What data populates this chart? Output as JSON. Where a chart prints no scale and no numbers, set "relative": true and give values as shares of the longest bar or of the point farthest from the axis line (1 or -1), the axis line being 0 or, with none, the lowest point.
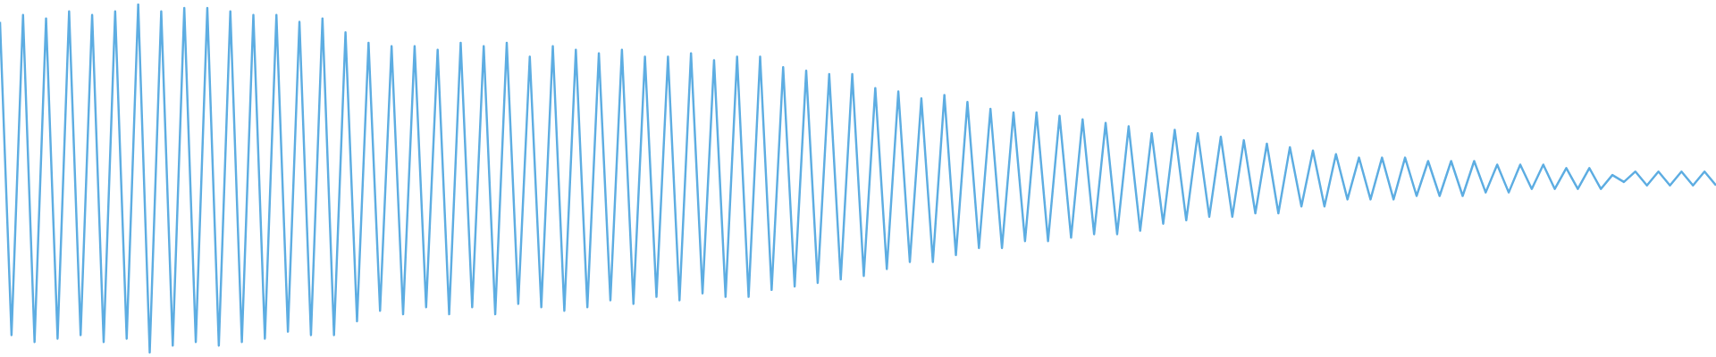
{
  "chart_data": {
    "type": "line",
    "relative": true,
    "color": "#5dade2",
    "categories": [
      null,
      null,
      null,
      null,
      null,
      null,
      null,
      null,
      null,
      null,
      null,
      null,
      null,
      null,
      null,
      null,
      null,
      null,
      null,
      null,
      null,
      null,
      null,
      null,
      null,
      null,
      null,
      null,
      null,
      null,
      null,
      null,
      null,
      null,
      null,
      null,
      null,
      null,
      null,
      null,
      null,
      null,
      null,
      null,
      null,
      null,
      null,
      null,
      null,
      null,
      null,
      null,
      null,
      null,
      null,
      null,
      null,
      null,
      null,
      null,
      null,
      null,
      null,
      null,
      null,
      null,
      null,
      null,
      null,
      null,
      null,
      null,
      null,
      null,
      null,
      null,
      null,
      null,
      null,
      null,
      null,
      null,
      null,
      null,
      null,
      null,
      null,
      null,
      null,
      null,
      null,
      null,
      null,
      null,
      null,
      null,
      null,
      null,
      null,
      null,
      null,
      null,
      null,
      null,
      null,
      null,
      null,
      null,
      null,
      null,
      null,
      null,
      null,
      null,
      null,
      null,
      null,
      null,
      null,
      null,
      null,
      null,
      null,
      null,
      null,
      null,
      null,
      null,
      null,
      null,
      null,
      null,
      null,
      null,
      null,
      null,
      null,
      null,
      null,
      null,
      null,
      null,
      null,
      null,
      null,
      null,
      null,
      null,
      null,
      null
    ],
    "values": [
      0.95,
      0.05,
      0.97,
      0.03,
      0.96,
      0.04,
      0.98,
      0.05,
      0.97,
      0.03,
      0.98,
      0.04,
      1,
      0,
      0.98,
      0.02,
      0.99,
      0.03,
      0.99,
      0.02,
      0.98,
      0.03,
      0.97,
      0.04,
      0.97,
      0.06,
      0.95,
      0.05,
      0.96,
      0.05,
      0.92,
      0.09,
      0.89,
      0.12,
      0.88,
      0.11,
      0.88,
      0.13,
      0.87,
      0.11,
      0.89,
      0.13,
      0.88,
      0.11,
      0.89,
      0.14,
      0.85,
      0.13,
      0.88,
      0.12,
      0.87,
      0.13,
      0.86,
      0.15,
      0.87,
      0.14,
      0.85,
      0.16,
      0.85,
      0.15,
      0.86,
      0.17,
      0.84,
      0.16,
      0.85,
      0.16,
      0.85,
      0.18,
      0.82,
      0.19,
      0.81,
      0.2,
      0.8,
      0.21,
      0.8,
      0.22,
      0.76,
      0.24,
      0.75,
      0.26,
      0.73,
      0.26,
      0.74,
      0.28,
      0.72,
      0.3,
      0.7,
      0.3,
      0.69,
      0.32,
      0.69,
      0.32,
      0.68,
      0.33,
      0.67,
      0.34,
      0.66,
      0.34,
      0.65,
      0.35,
      0.63,
      0.37,
      0.64,
      0.38,
      0.63,
      0.39,
      0.62,
      0.39,
      0.61,
      0.4,
      0.6,
      0.4,
      0.59,
      0.42,
      0.58,
      0.42,
      0.57,
      0.44,
      0.56,
      0.44,
      0.56,
      0.44,
      0.56,
      0.45,
      0.55,
      0.45,
      0.55,
      0.45,
      0.55,
      0.46,
      0.54,
      0.46,
      0.54,
      0.47,
      0.54,
      0.47,
      0.53,
      0.47,
      0.53,
      0.47,
      0.51,
      0.49,
      0.52,
      0.48,
      0.52,
      0.48,
      0.52,
      0.48,
      0.52,
      0.48
    ]
  }
}
